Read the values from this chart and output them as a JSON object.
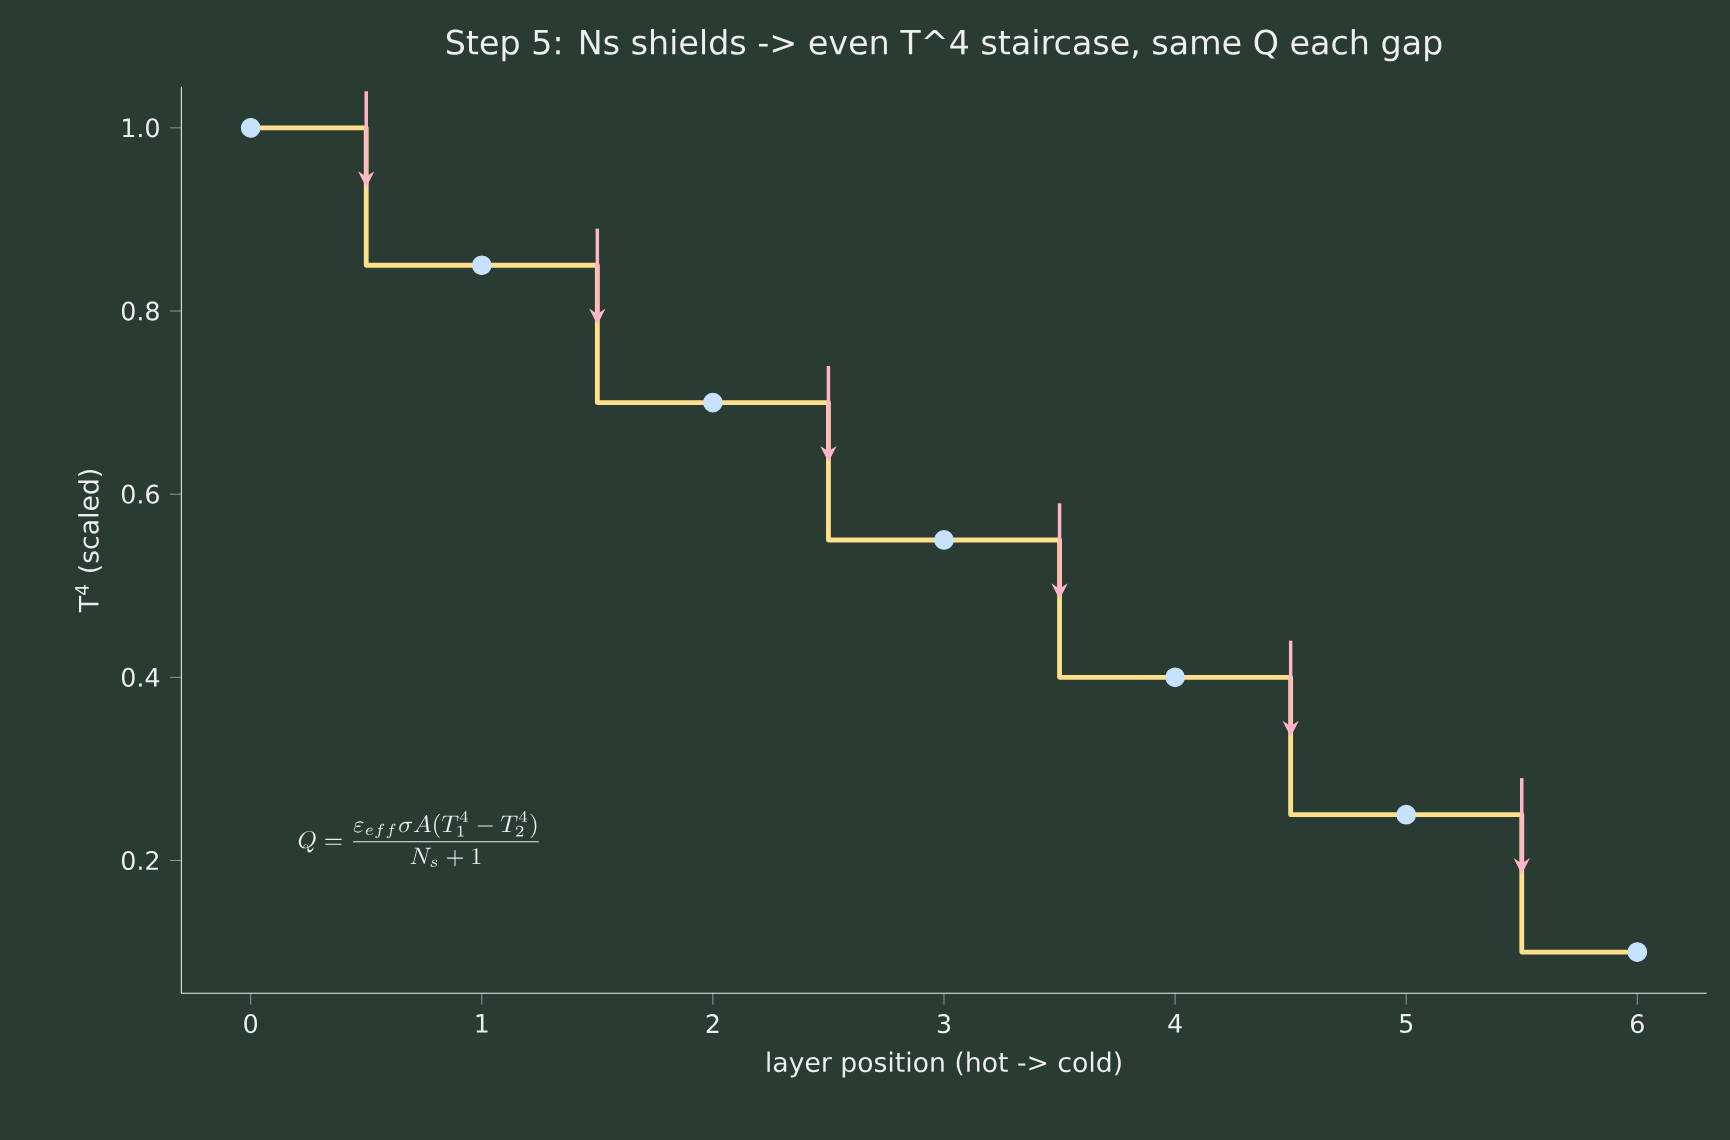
{
  "chart_data": {
    "type": "step",
    "title": "Step 5: Ns shields -> even T^4 staircase, same Q each gap",
    "xlabel": "layer position (hot -> cold)",
    "ylabel": "T$^{4}$ (scaled)",
    "x": [
      0,
      1,
      2,
      3,
      4,
      5,
      6
    ],
    "series": [
      {
        "color": "#ffe08a",
        "marker": "none",
        "values": [
          1.0,
          0.85,
          0.7,
          0.55,
          0.4,
          0.25,
          0.1
        ]
      },
      {
        "type": "scatter",
        "color": "#c6e2ff",
        "marker": "circle",
        "values": [
          1.0,
          0.85,
          0.7,
          0.55,
          0.4,
          0.25,
          0.1
        ]
      }
    ],
    "xlim": [
      -0.3,
      6.3
    ],
    "ylim": [
      0.055,
      1.045
    ],
    "xticks": [
      0,
      1,
      2,
      3,
      4,
      5,
      6
    ],
    "yticks": [
      {
        "value": 0.2,
        "label": "0.2"
      },
      {
        "value": 0.4,
        "label": "0.4"
      },
      {
        "value": 0.6,
        "label": "0.6"
      },
      {
        "value": 0.8,
        "label": "0.8"
      },
      {
        "value": 1.0,
        "label": "1.0"
      }
    ],
    "grid": false,
    "annotations": [
      "Q=\\frac{\\varepsilon_{eff}\\sigma A(T_1^4-T_2^4)}{N_s+1}"
    ]
  }
}
